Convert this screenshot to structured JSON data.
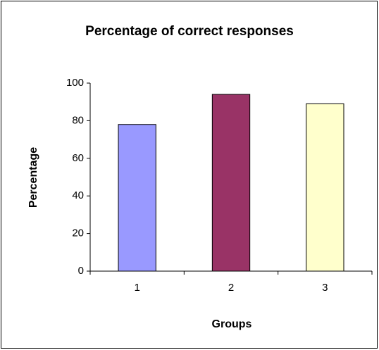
{
  "chart_data": {
    "type": "bar",
    "title": "Percentage of correct responses",
    "x_label": "Groups",
    "y_label": "Percentage",
    "categories": [
      "1",
      "2",
      "3"
    ],
    "values": [
      78,
      94,
      89
    ],
    "colors": [
      "#9999ff",
      "#993366",
      "#ffffcc"
    ],
    "ylim": [
      0,
      100
    ],
    "yticks": [
      0,
      20,
      40,
      60,
      80,
      100
    ],
    "grid": false
  }
}
